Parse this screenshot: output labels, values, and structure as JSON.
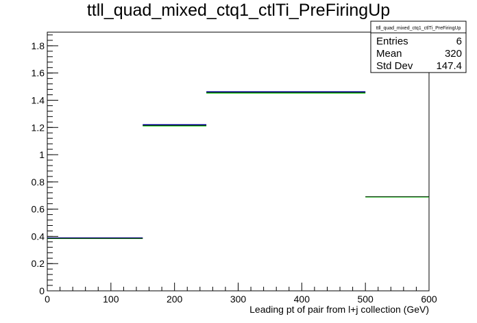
{
  "chart_data": {
    "type": "histogram",
    "title": "ttll_quad_mixed_ctq1_ctlTi_PreFiringUp",
    "xlabel": "Leading pt of pair from l+j collection (GeV)",
    "ylabel": "",
    "xlim": [
      0,
      600
    ],
    "ylim": [
      0,
      1.9
    ],
    "x_ticks": [
      0,
      100,
      200,
      300,
      400,
      500,
      600
    ],
    "y_ticks": [
      0,
      0.2,
      0.4,
      0.6,
      0.8,
      1,
      1.2,
      1.4,
      1.6,
      1.8
    ],
    "grid": false,
    "legend": "none",
    "bin_edges": [
      0,
      150,
      250,
      500,
      600
    ],
    "series": [
      {
        "color": "#00cc00",
        "values": [
          0.385,
          1.212,
          1.453,
          0.69
        ]
      },
      {
        "color": "#000099",
        "values": [
          0.388,
          1.22,
          1.462,
          null
        ]
      },
      {
        "color": "#000000",
        "values": [
          0.386,
          1.215,
          1.457,
          0.692
        ]
      }
    ],
    "stats_box": {
      "title": "ttll_quad_mixed_ctq1_ctlTi_PreFiringUp",
      "rows": [
        {
          "label": "Entries",
          "value": "6"
        },
        {
          "label": "Mean",
          "value": "320"
        },
        {
          "label": "Std Dev",
          "value": "147.4"
        }
      ]
    }
  }
}
